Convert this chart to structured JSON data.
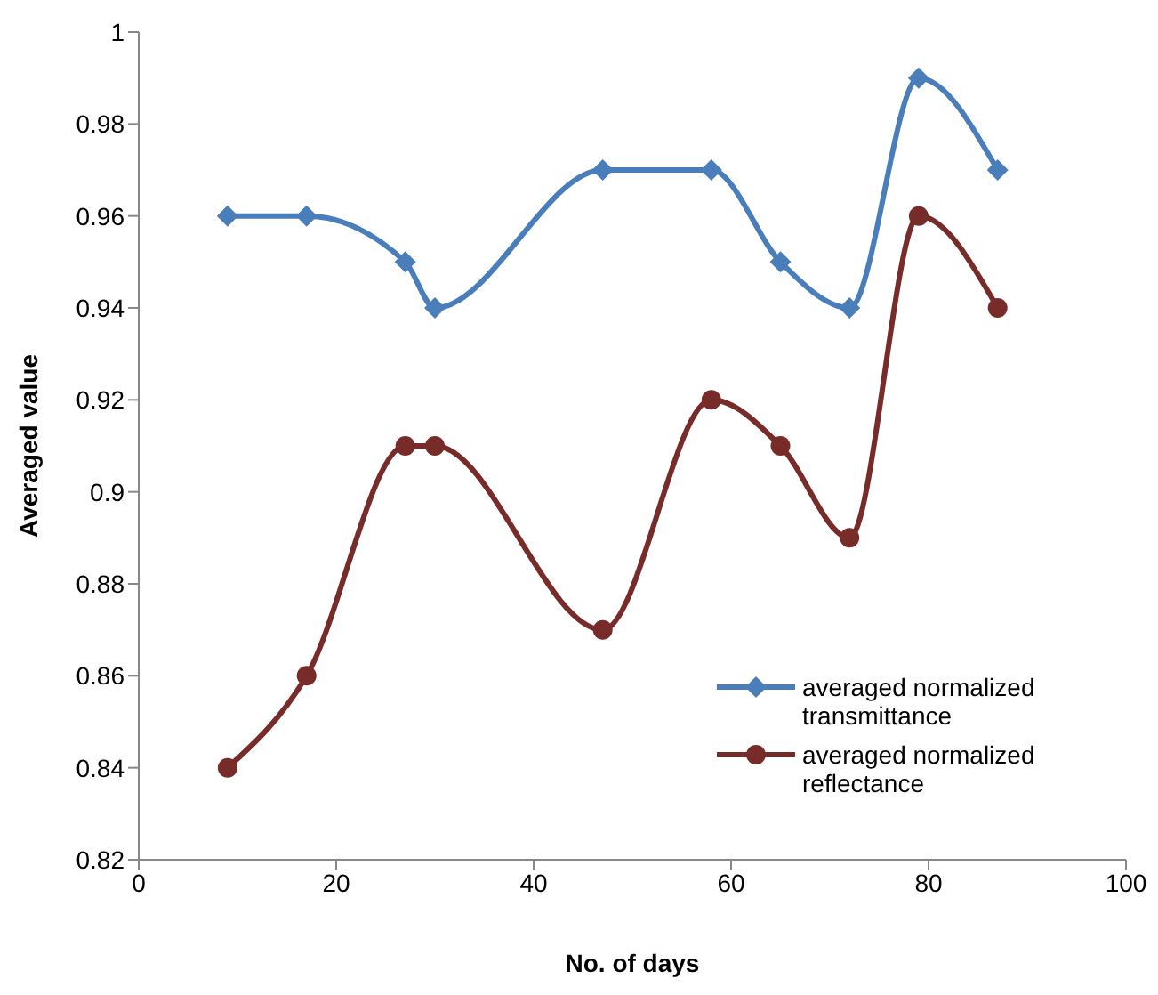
{
  "chart_data": {
    "type": "line",
    "xlabel": "No. of days",
    "ylabel": "Averaged value",
    "xlim": [
      0,
      100
    ],
    "xticks": [
      0,
      20,
      40,
      60,
      80,
      100
    ],
    "ylim": [
      0.82,
      1
    ],
    "yticks": [
      0.82,
      0.84,
      0.86,
      0.88,
      0.9,
      0.92,
      0.94,
      0.96,
      0.98,
      1
    ],
    "x": [
      9,
      17,
      27,
      30,
      47,
      58,
      65,
      72,
      79,
      87
    ],
    "series": [
      {
        "name": "averaged normalized transmittance",
        "color": "#4a7ebb",
        "marker": "diamond",
        "values": [
          0.96,
          0.96,
          0.95,
          0.94,
          0.97,
          0.97,
          0.95,
          0.94,
          0.99,
          0.97
        ]
      },
      {
        "name": "averaged normalized reflectance",
        "color": "#772c2a",
        "marker": "circle",
        "values": [
          0.84,
          0.86,
          0.91,
          0.91,
          0.87,
          0.92,
          0.91,
          0.89,
          0.96,
          0.94
        ]
      }
    ],
    "line_style": "solid",
    "grid": false,
    "legend": "bottom right"
  }
}
